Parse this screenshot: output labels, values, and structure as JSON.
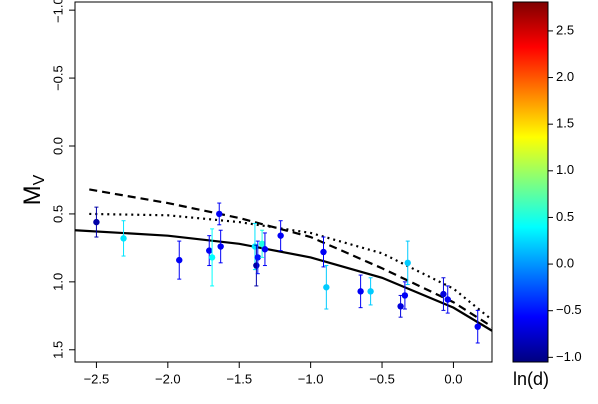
{
  "chart_data": {
    "type": "scatter",
    "ylabel": "M",
    "ylabel_sub": "V",
    "xlim": [
      -2.65,
      0.27
    ],
    "ylim": [
      1.59,
      -1.06
    ],
    "xticks": [
      {
        "value": -2.5,
        "label": "−2.5"
      },
      {
        "value": -2,
        "label": "−2.0"
      },
      {
        "value": -1.5,
        "label": "−1.5"
      },
      {
        "value": -1,
        "label": "−1.0"
      },
      {
        "value": -0.5,
        "label": "−0.5"
      },
      {
        "value": 0,
        "label": "0.0"
      }
    ],
    "yticks": [
      {
        "value": -1,
        "label": "−1.0"
      },
      {
        "value": -0.5,
        "label": "−0.5"
      },
      {
        "value": 0,
        "label": "0.0"
      },
      0.5,
      {
        "value": 1,
        "label": "1.0"
      },
      1.5
    ],
    "x": [
      -2.5,
      -2.31,
      -1.92,
      -1.71,
      -1.69,
      -1.64,
      -1.63,
      -1.39,
      -1.38,
      -1.37,
      -1.34,
      -1.32,
      -1.21,
      -0.91,
      -0.89,
      -0.65,
      -0.58,
      -0.37,
      -0.34,
      -0.32,
      -0.07,
      -0.04,
      0.17
    ],
    "y": [
      0.56,
      0.68,
      0.84,
      0.77,
      0.82,
      0.5,
      0.74,
      0.74,
      0.88,
      0.82,
      0.72,
      0.76,
      0.66,
      0.78,
      1.04,
      1.07,
      1.07,
      1.18,
      1.1,
      0.86,
      1.09,
      1.13,
      1.33
    ],
    "errors": [
      0.11,
      0.13,
      0.14,
      0.11,
      0.21,
      0.08,
      0.12,
      0.17,
      0.15,
      0.12,
      0.1,
      0.12,
      0.11,
      0.11,
      0.16,
      0.12,
      0.1,
      0.08,
      0.1,
      0.16,
      0.12,
      0.1,
      0.12
    ],
    "z": [
      -0.9,
      0.3,
      -0.6,
      -0.6,
      0.4,
      -0.6,
      -0.6,
      0.3,
      -0.9,
      -0.5,
      0.5,
      -0.6,
      -0.6,
      -0.6,
      0.2,
      -0.6,
      0.2,
      -0.7,
      -0.6,
      0.2,
      -0.7,
      -0.6,
      -0.6
    ],
    "curves": [
      {
        "style": "solid",
        "x": [
          -2.65,
          -2,
          -1.5,
          -1,
          -0.5,
          0,
          0.27
        ],
        "y": [
          0.62,
          0.66,
          0.72,
          0.82,
          0.97,
          1.19,
          1.36
        ]
      },
      {
        "style": "dashed",
        "x": [
          -2.55,
          -2,
          -1.5,
          -1,
          -0.5,
          0,
          0.27
        ],
        "y": [
          0.32,
          0.42,
          0.53,
          0.67,
          0.9,
          1.15,
          1.33
        ]
      },
      {
        "style": "dotted",
        "x": [
          -2.55,
          -2,
          -1.5,
          -1,
          -0.5,
          0,
          0.27
        ],
        "y": [
          0.5,
          0.51,
          0.56,
          0.64,
          0.79,
          1.05,
          1.28
        ]
      }
    ],
    "colorbar": {
      "label": "ln(d)",
      "lim": [
        -1.05,
        2.81
      ],
      "ticks": [
        {
          "value": -1,
          "label": "−1.0"
        },
        {
          "value": -0.5,
          "label": "−0.5"
        },
        {
          "value": 0,
          "label": "0.0"
        },
        0.5,
        {
          "value": 1,
          "label": "1.0"
        },
        1.5,
        {
          "value": 2,
          "label": "2.0"
        },
        2.5
      ],
      "colormap": [
        "#00007f",
        "#0000ff",
        "#007fff",
        "#00ffff",
        "#7fff7f",
        "#ffff00",
        "#ff7f00",
        "#ff0000",
        "#7f0000"
      ]
    }
  }
}
